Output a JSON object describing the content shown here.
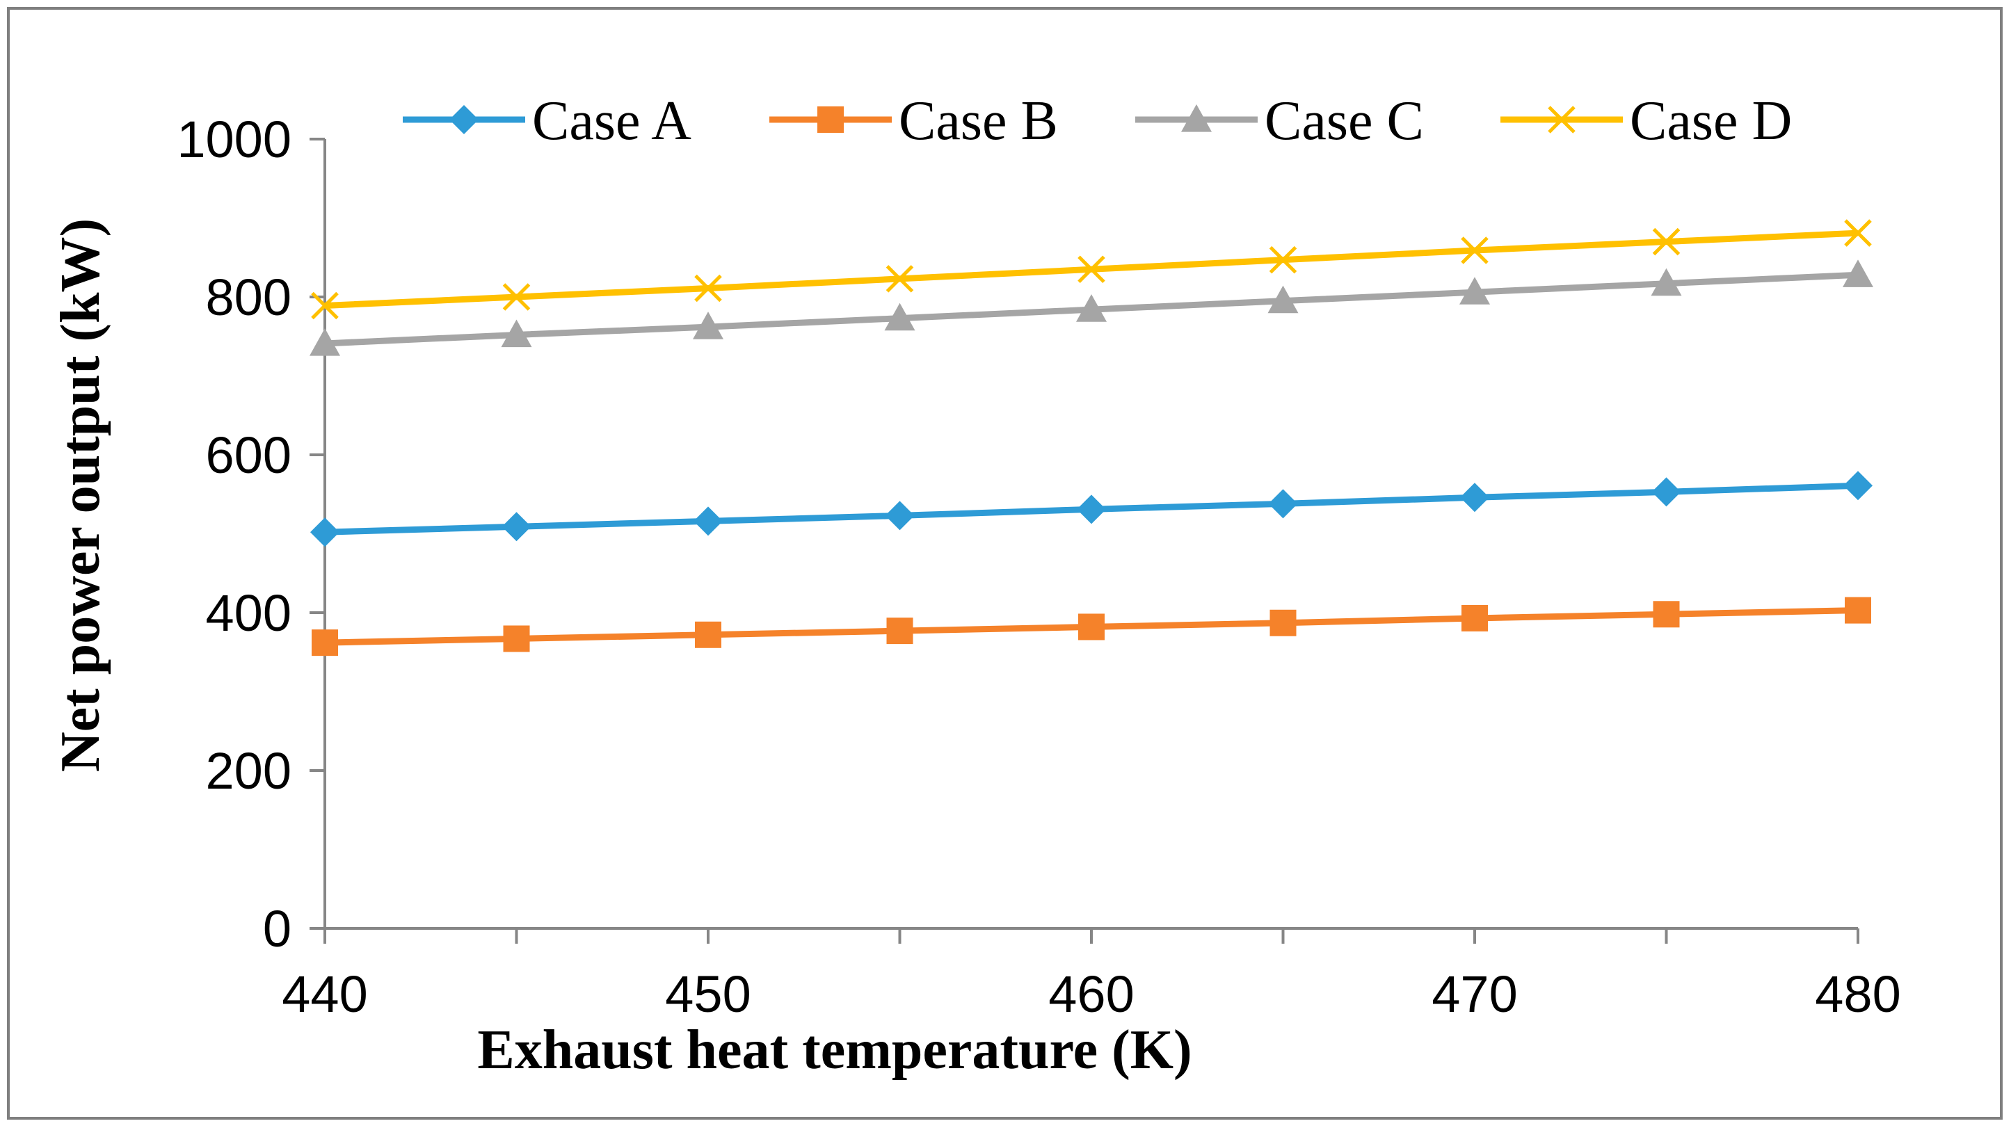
{
  "chart_data": {
    "type": "line",
    "title": "",
    "xlabel": "Exhaust heat temperature (K)",
    "ylabel": "Net power output (kW)",
    "x": [
      440,
      445,
      450,
      455,
      460,
      465,
      470,
      475,
      480
    ],
    "xlim": [
      440,
      480
    ],
    "ylim": [
      0,
      1000
    ],
    "xticks": [
      440,
      450,
      460,
      470,
      480
    ],
    "yticks": [
      0,
      200,
      400,
      600,
      800,
      1000
    ],
    "grid": false,
    "legend_position": "top",
    "series": [
      {
        "name": "Case A",
        "color": "#2e9bd6",
        "marker": "diamond",
        "values": [
          502,
          509,
          516,
          523,
          531,
          538,
          546,
          553,
          561
        ]
      },
      {
        "name": "Case B",
        "color": "#f5822a",
        "marker": "square",
        "values": [
          362,
          367,
          372,
          377,
          382,
          387,
          393,
          398,
          403
        ]
      },
      {
        "name": "Case C",
        "color": "#a5a5a5",
        "marker": "triangle",
        "values": [
          741,
          752,
          762,
          773,
          784,
          795,
          806,
          817,
          828
        ]
      },
      {
        "name": "Case D",
        "color": "#ffc000",
        "marker": "x",
        "values": [
          789,
          800,
          811,
          823,
          835,
          847,
          859,
          870,
          881
        ]
      }
    ]
  }
}
